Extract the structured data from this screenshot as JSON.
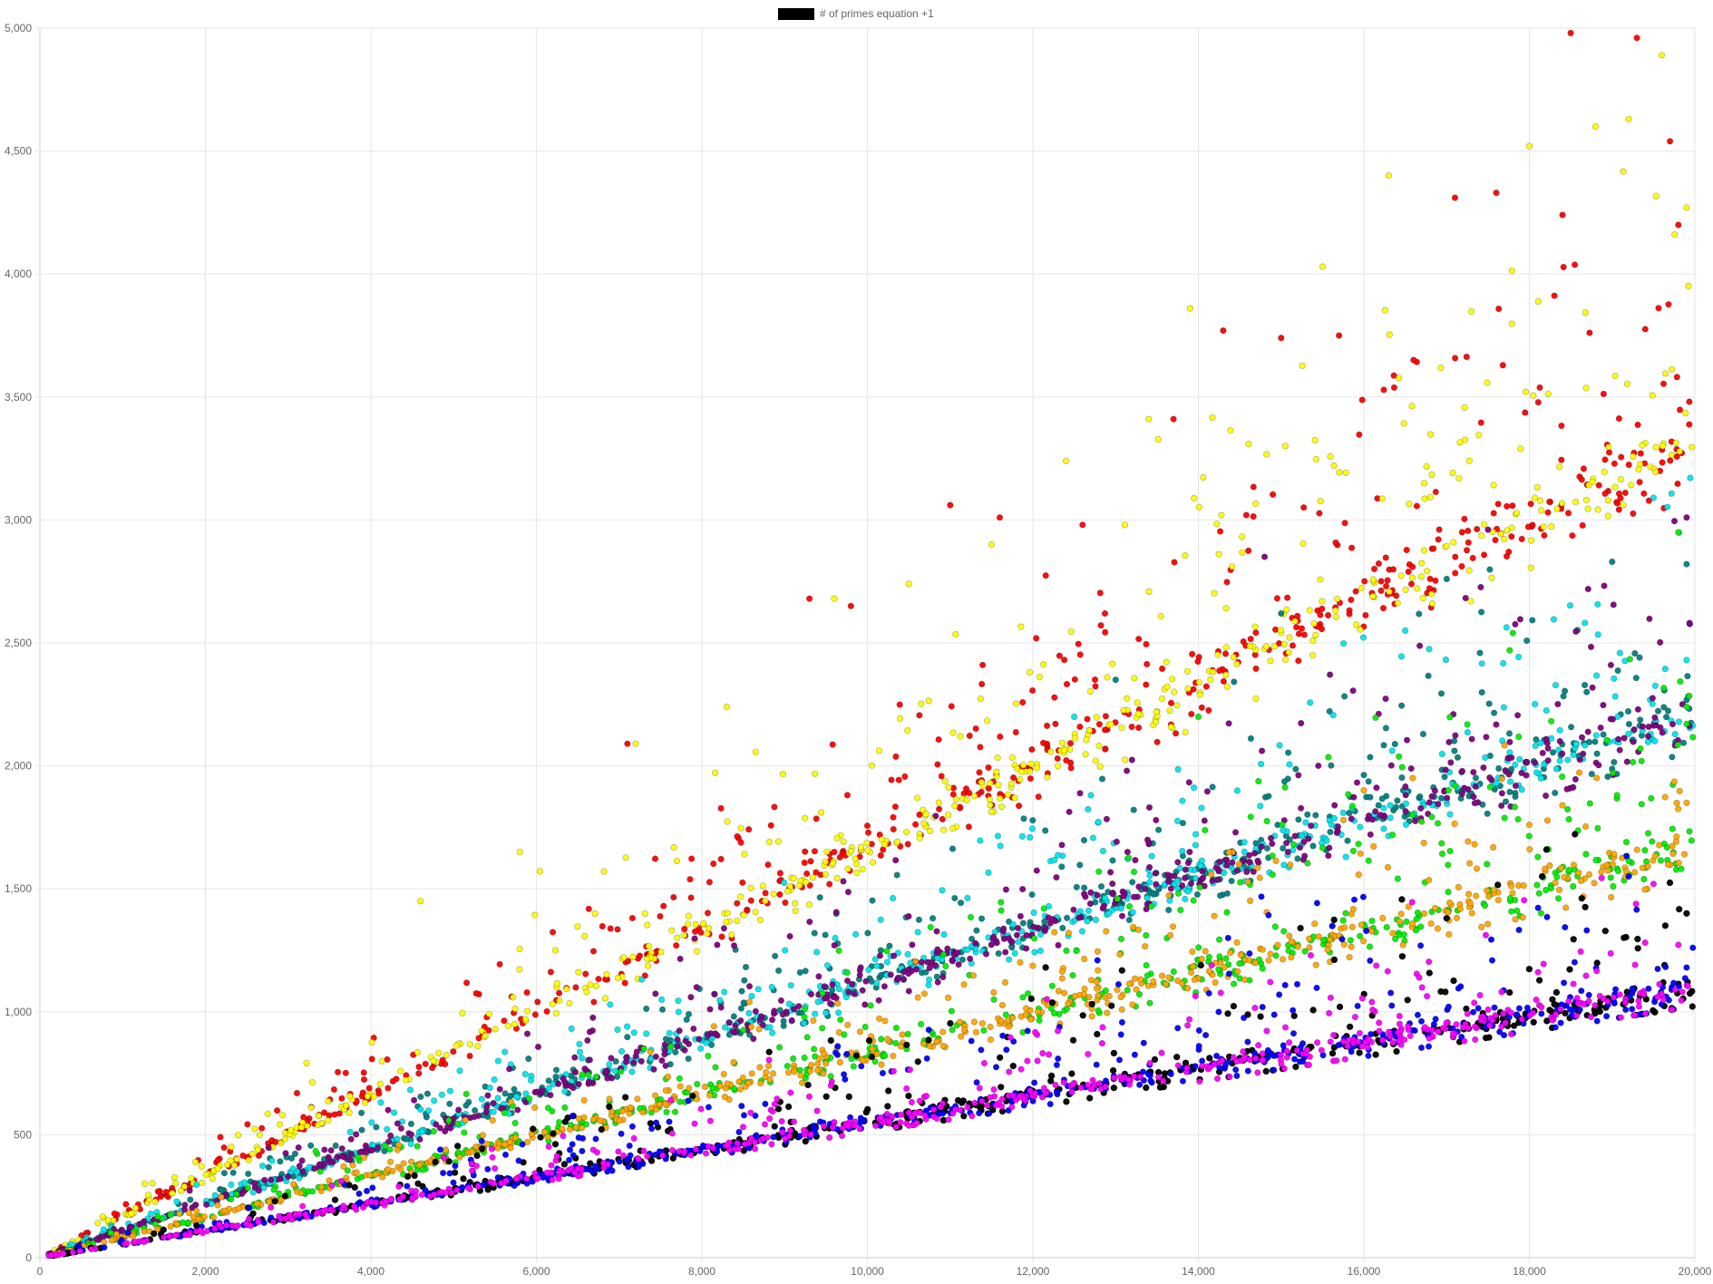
{
  "chart_data": {
    "type": "scatter",
    "legend": {
      "position": "top-center",
      "entries": [
        {
          "label": "# of primes equation +1",
          "color": "#000000"
        }
      ]
    },
    "x_axis": {
      "min": 0,
      "max": 20000,
      "ticks": [
        0,
        2000,
        4000,
        6000,
        8000,
        10000,
        12000,
        14000,
        16000,
        18000,
        20000
      ],
      "tick_labels": [
        "0",
        "2,000",
        "4,000",
        "6,000",
        "8,000",
        "10,000",
        "12,000",
        "14,000",
        "16,000",
        "18,000",
        "20,000"
      ]
    },
    "y_axis": {
      "min": 0,
      "max": 5000,
      "ticks": [
        0,
        500,
        1000,
        1500,
        2000,
        2500,
        3000,
        3500,
        4000,
        4500,
        5000
      ],
      "tick_labels": [
        "0",
        "500",
        "1,000",
        "1,500",
        "2,000",
        "2,500",
        "3,000",
        "3,500",
        "4,000",
        "4,500",
        "5,000"
      ]
    },
    "grid": true,
    "series": [
      {
        "color": "#ff0000",
        "baseline_slope": 0.167,
        "spread_slope": 0.034,
        "points": [
          [
            7100,
            2090
          ],
          [
            9300,
            2680
          ],
          [
            9800,
            2650
          ],
          [
            11000,
            3060
          ],
          [
            11600,
            3010
          ],
          [
            12600,
            2980
          ],
          [
            13700,
            3410
          ],
          [
            14300,
            3770
          ],
          [
            15000,
            3740
          ],
          [
            15700,
            3750
          ],
          [
            16600,
            3650
          ],
          [
            17100,
            4310
          ],
          [
            17600,
            4330
          ],
          [
            18400,
            4240
          ],
          [
            18500,
            4980
          ],
          [
            19300,
            4960
          ],
          [
            19700,
            4540
          ],
          [
            19800,
            4200
          ]
        ]
      },
      {
        "color": "#ffff00",
        "baseline_slope": 0.166,
        "spread_slope": 0.042,
        "points": [
          [
            4600,
            1450
          ],
          [
            5800,
            1650
          ],
          [
            7200,
            2090
          ],
          [
            8300,
            2240
          ],
          [
            9600,
            2680
          ],
          [
            10500,
            2740
          ],
          [
            11500,
            2900
          ],
          [
            12400,
            3240
          ],
          [
            13400,
            3410
          ],
          [
            13900,
            3860
          ],
          [
            15500,
            4030
          ],
          [
            16300,
            4400
          ],
          [
            18000,
            4520
          ],
          [
            18800,
            4600
          ],
          [
            19200,
            4630
          ],
          [
            19600,
            4890
          ],
          [
            19900,
            4270
          ]
        ]
      },
      {
        "color": "#008080",
        "baseline_slope": 0.111,
        "spread_slope": 0.024,
        "points": [
          [
            13000,
            2350
          ],
          [
            15000,
            2620
          ],
          [
            17000,
            2760
          ],
          [
            19000,
            2830
          ],
          [
            19900,
            2820
          ]
        ]
      },
      {
        "color": "#00e5ee",
        "baseline_slope": 0.111,
        "spread_slope": 0.024,
        "points": [
          [
            12500,
            2200
          ],
          [
            16500,
            2550
          ],
          [
            19500,
            3090
          ],
          [
            19900,
            2430
          ]
        ]
      },
      {
        "color": "#800080",
        "baseline_slope": 0.111,
        "spread_slope": 0.026,
        "points": [
          [
            14800,
            2850
          ],
          [
            17500,
            2960
          ],
          [
            19900,
            3010
          ]
        ]
      },
      {
        "color": "#00ee00",
        "baseline_slope": 0.083,
        "spread_slope": 0.026,
        "points": [
          [
            14000,
            2200
          ],
          [
            17800,
            2540
          ],
          [
            19800,
            2950
          ],
          [
            19900,
            2240
          ]
        ]
      },
      {
        "color": "#ffa500",
        "baseline_slope": 0.083,
        "spread_slope": 0.013,
        "points": [
          [
            16000,
            1900
          ],
          [
            18000,
            1760
          ],
          [
            19900,
            1850
          ]
        ]
      },
      {
        "color": "#000000",
        "baseline_slope": 0.055,
        "spread_slope": 0.018,
        "points": [
          [
            17000,
            1380
          ],
          [
            19900,
            1400
          ]
        ]
      },
      {
        "color": "#0000ff",
        "baseline_slope": 0.055,
        "spread_slope": 0.016,
        "points": [
          [
            19200,
            1550
          ],
          [
            19900,
            1180
          ]
        ]
      },
      {
        "color": "#ff00ff",
        "baseline_slope": 0.055,
        "spread_slope": 0.01,
        "points": [
          [
            19500,
            1520
          ]
        ]
      }
    ]
  }
}
